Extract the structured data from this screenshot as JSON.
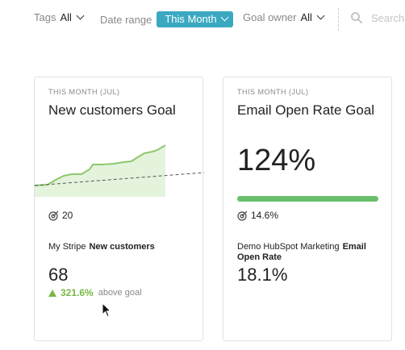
{
  "filters": {
    "tags": {
      "label": "Tags",
      "value": "All"
    },
    "date_range": {
      "label": "Date range",
      "value": "This Month"
    },
    "goal_owner": {
      "label": "Goal owner",
      "value": "All"
    },
    "search_placeholder": "Search..."
  },
  "cards": [
    {
      "eyebrow": "THIS MONTH (JUL)",
      "title": "New customers Goal",
      "target": "20",
      "source": "My Stripe",
      "metric_name": "New customers",
      "value": "68",
      "change_pct": "321.6%",
      "change_note": "above goal"
    },
    {
      "eyebrow": "THIS MONTH (JUL)",
      "title": "Email Open Rate Goal",
      "big_value": "124%",
      "progress": 1.0,
      "target": "14.6%",
      "source": "Demo HubSpot Marketing",
      "metric_name": "Email Open Rate",
      "value": "18.1%"
    }
  ],
  "colors": {
    "accent": "#3aa8c1",
    "positive": "#78b843",
    "progress": "#6ac06a"
  }
}
